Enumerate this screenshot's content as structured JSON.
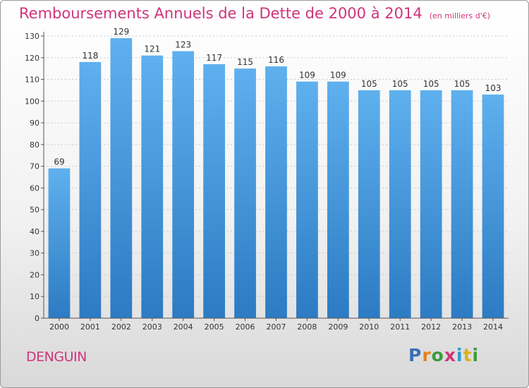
{
  "header": {
    "title": "Remboursements Annuels de la Dette de 2000 à 2014",
    "unit": "(en milliers d'€)"
  },
  "footer": {
    "place": "DENGUIN",
    "brand": "Proxiti"
  },
  "colors": {
    "title": "#d0347a",
    "bar_top": "#5fb0ee",
    "bar_bottom": "#2c7bc3",
    "grid": "#c8c8c8",
    "brand_letters": [
      "#3b6fb6",
      "#e6821e",
      "#3b9b3b",
      "#d0347a",
      "#2a9ad6",
      "#d7b21b",
      "#3b9b3b"
    ]
  },
  "chart_data": {
    "type": "bar",
    "title": "Remboursements Annuels de la Dette de 2000 à 2014",
    "xlabel": "",
    "ylabel": "",
    "categories": [
      "2000",
      "2001",
      "2002",
      "2003",
      "2004",
      "2005",
      "2006",
      "2007",
      "2008",
      "2009",
      "2010",
      "2011",
      "2012",
      "2013",
      "2014"
    ],
    "values": [
      69,
      118,
      129,
      121,
      123,
      117,
      115,
      116,
      109,
      109,
      105,
      105,
      105,
      105,
      103
    ],
    "ylim": [
      0,
      130
    ],
    "yticks": [
      0,
      10,
      20,
      30,
      40,
      50,
      60,
      70,
      80,
      90,
      100,
      110,
      120,
      130
    ],
    "grid": true,
    "data_labels": true
  }
}
